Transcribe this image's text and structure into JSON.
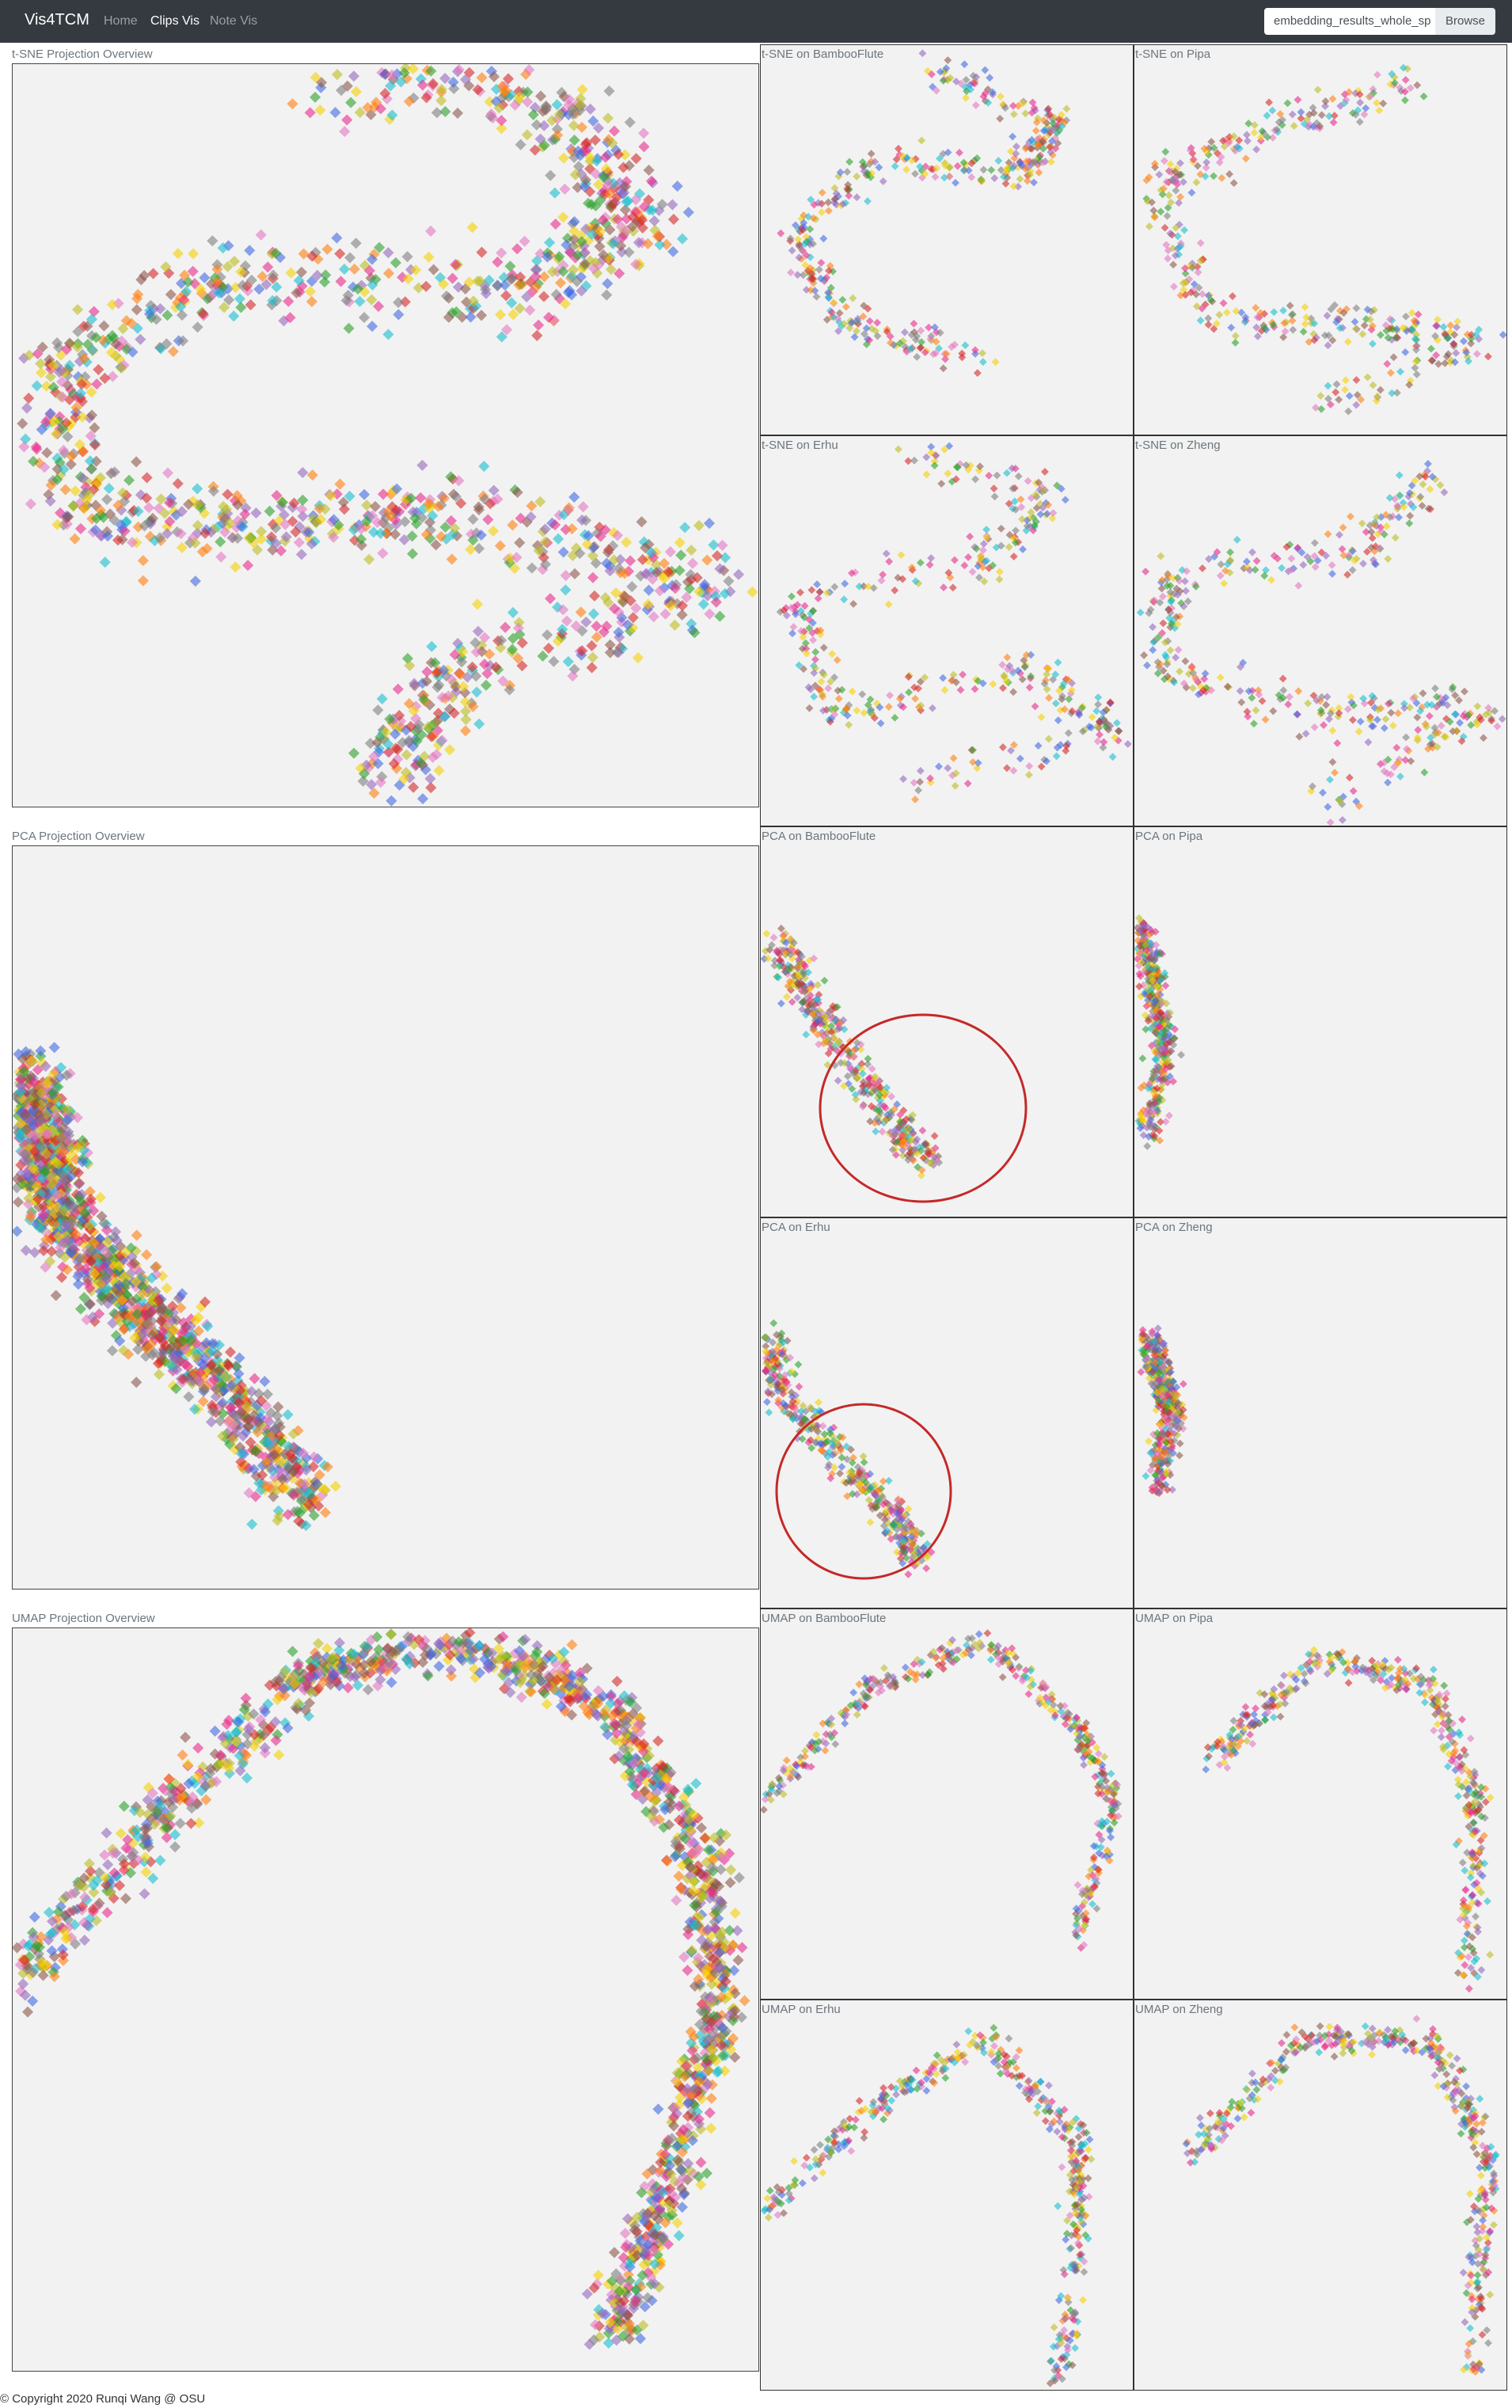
{
  "navbar": {
    "brand": "Vis4TCM",
    "links": [
      "Home",
      "Clips Vis",
      "Note Vis"
    ],
    "file_input": "embedding_results_whole_sp",
    "button": "Browse"
  },
  "sections": [
    {
      "title": "t-SNE Projection Overview",
      "panels": [
        "t-SNE on BambooFlute",
        "t-SNE on Pipa",
        "t-SNE on Erhu",
        "t-SNE on Zheng"
      ]
    },
    {
      "title": "PCA Projection Overview",
      "panels": [
        "PCA on BambooFlute",
        "PCA on Pipa",
        "PCA on Erhu",
        "PCA on Zheng"
      ]
    },
    {
      "title": "UMAP Projection Overview",
      "panels": [
        "UMAP on BambooFlute",
        "UMAP on Pipa",
        "UMAP on Erhu",
        "UMAP on Zheng"
      ]
    }
  ],
  "footer": "© Copyright 2020 Runqi Wang @ OSU"
}
